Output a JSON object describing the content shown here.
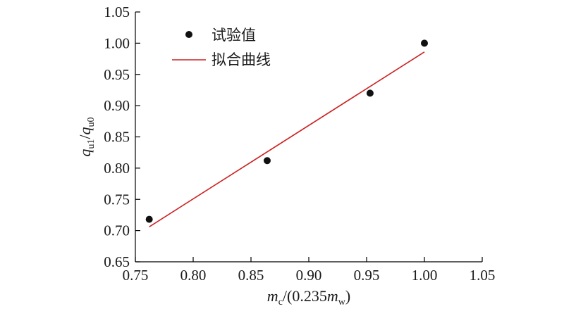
{
  "chart_data": {
    "type": "scatter",
    "xlim": [
      0.75,
      1.05
    ],
    "ylim": [
      0.65,
      1.05
    ],
    "x_ticks": [
      "0.75",
      "0.80",
      "0.85",
      "0.90",
      "0.95",
      "1.00",
      "1.05"
    ],
    "y_ticks": [
      "0.65",
      "0.70",
      "0.75",
      "0.80",
      "0.85",
      "0.90",
      "0.95",
      "1.00",
      "1.05"
    ],
    "xlabel": {
      "m": "m",
      "sub1": "c",
      "mid": "/(0.235",
      "m2": "m",
      "sub2": "w",
      "end": ")"
    },
    "ylabel": {
      "q1": "q",
      "sub1": "u1",
      "slash": "/",
      "q2": "q",
      "sub2": "u0"
    },
    "grid": false,
    "legend_position": "top-left",
    "series": [
      {
        "name": "试验值",
        "kind": "points",
        "color": "#111111",
        "x": [
          0.762,
          0.864,
          0.953,
          1.0
        ],
        "y": [
          0.718,
          0.812,
          0.92,
          1.0
        ]
      },
      {
        "name": "拟合曲线",
        "kind": "line",
        "color": "#cc2222",
        "x": [
          0.762,
          1.0
        ],
        "y": [
          0.706,
          0.986
        ]
      }
    ]
  }
}
